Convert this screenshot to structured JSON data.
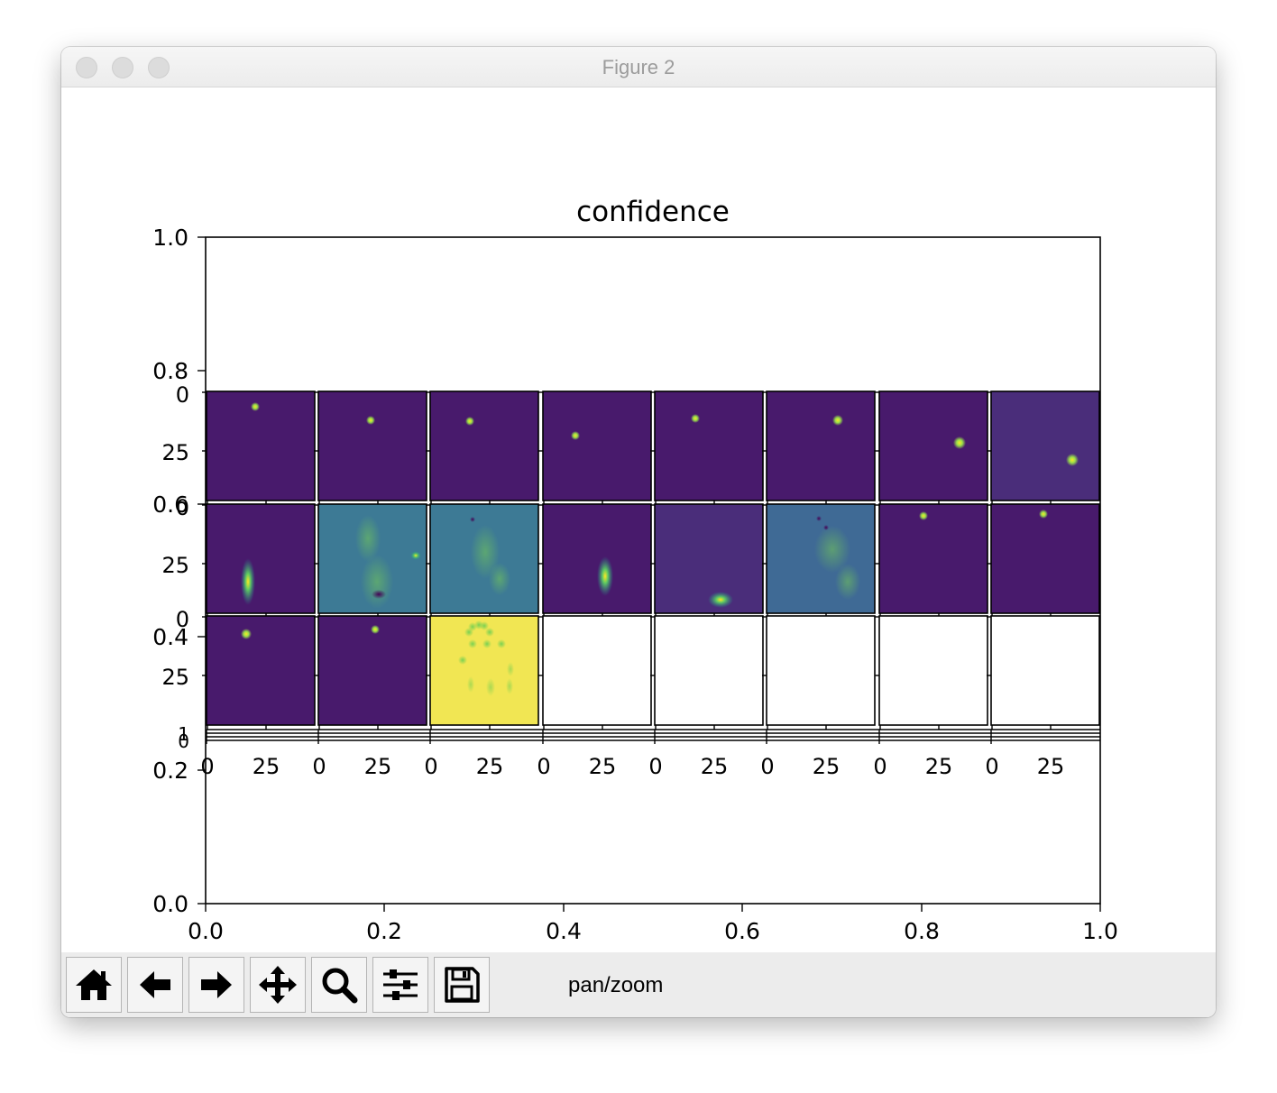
{
  "window": {
    "title": "Figure 2"
  },
  "figure": {
    "title": "confidence",
    "outer_axes": {
      "xticks": [
        "0.0",
        "0.2",
        "0.4",
        "0.6",
        "0.8",
        "1.0"
      ],
      "yticks": [
        "0.0",
        "0.2",
        "0.4",
        "0.6",
        "0.8",
        "1.0"
      ]
    },
    "grid": {
      "rows": 3,
      "cols": 8,
      "panel_xticks": [
        "0",
        "25"
      ],
      "panel_yticks": [
        "0",
        "25"
      ],
      "stray_yticks": [
        "0",
        "1"
      ]
    },
    "panels": [
      {
        "name": "r1c1",
        "state": "image"
      },
      {
        "name": "r1c2",
        "state": "image"
      },
      {
        "name": "r1c3",
        "state": "image"
      },
      {
        "name": "r1c4",
        "state": "image"
      },
      {
        "name": "r1c5",
        "state": "image"
      },
      {
        "name": "r1c6",
        "state": "image"
      },
      {
        "name": "r1c7",
        "state": "image"
      },
      {
        "name": "r1c8",
        "state": "image"
      },
      {
        "name": "r2c1",
        "state": "image"
      },
      {
        "name": "r2c2",
        "state": "image"
      },
      {
        "name": "r2c3",
        "state": "image"
      },
      {
        "name": "r2c4",
        "state": "image"
      },
      {
        "name": "r2c5",
        "state": "image"
      },
      {
        "name": "r2c6",
        "state": "image"
      },
      {
        "name": "r2c7",
        "state": "image"
      },
      {
        "name": "r2c8",
        "state": "image"
      },
      {
        "name": "r3c1",
        "state": "image"
      },
      {
        "name": "r3c2",
        "state": "image"
      },
      {
        "name": "r3c3",
        "state": "image"
      },
      {
        "name": "r3c4",
        "state": "empty"
      },
      {
        "name": "r3c5",
        "state": "empty"
      },
      {
        "name": "r3c6",
        "state": "empty"
      },
      {
        "name": "r3c7",
        "state": "empty"
      },
      {
        "name": "r3c8",
        "state": "empty"
      }
    ]
  },
  "toolbar": {
    "buttons": [
      {
        "name": "home-button",
        "icon": "home-icon"
      },
      {
        "name": "back-button",
        "icon": "arrow-left-icon"
      },
      {
        "name": "forward-button",
        "icon": "arrow-right-icon"
      },
      {
        "name": "pan-button",
        "icon": "move-icon"
      },
      {
        "name": "zoom-button",
        "icon": "magnifier-icon"
      },
      {
        "name": "configure-subplots-button",
        "icon": "sliders-icon"
      },
      {
        "name": "save-button",
        "icon": "floppy-disk-icon"
      }
    ],
    "status": "pan/zoom"
  },
  "colors": {
    "viridis_dark": "#481a6c",
    "viridis_dim": "#4a2d7a",
    "viridis_teal": "#3d7a95",
    "viridis_blue": "#3f6a95",
    "viridis_yellow": "#f1e653",
    "hot_spot": "#9ae04a",
    "empty_panel": "#ffffff",
    "titlebar_text": "#9c9c9c",
    "toolbar_bg": "#ececec"
  }
}
